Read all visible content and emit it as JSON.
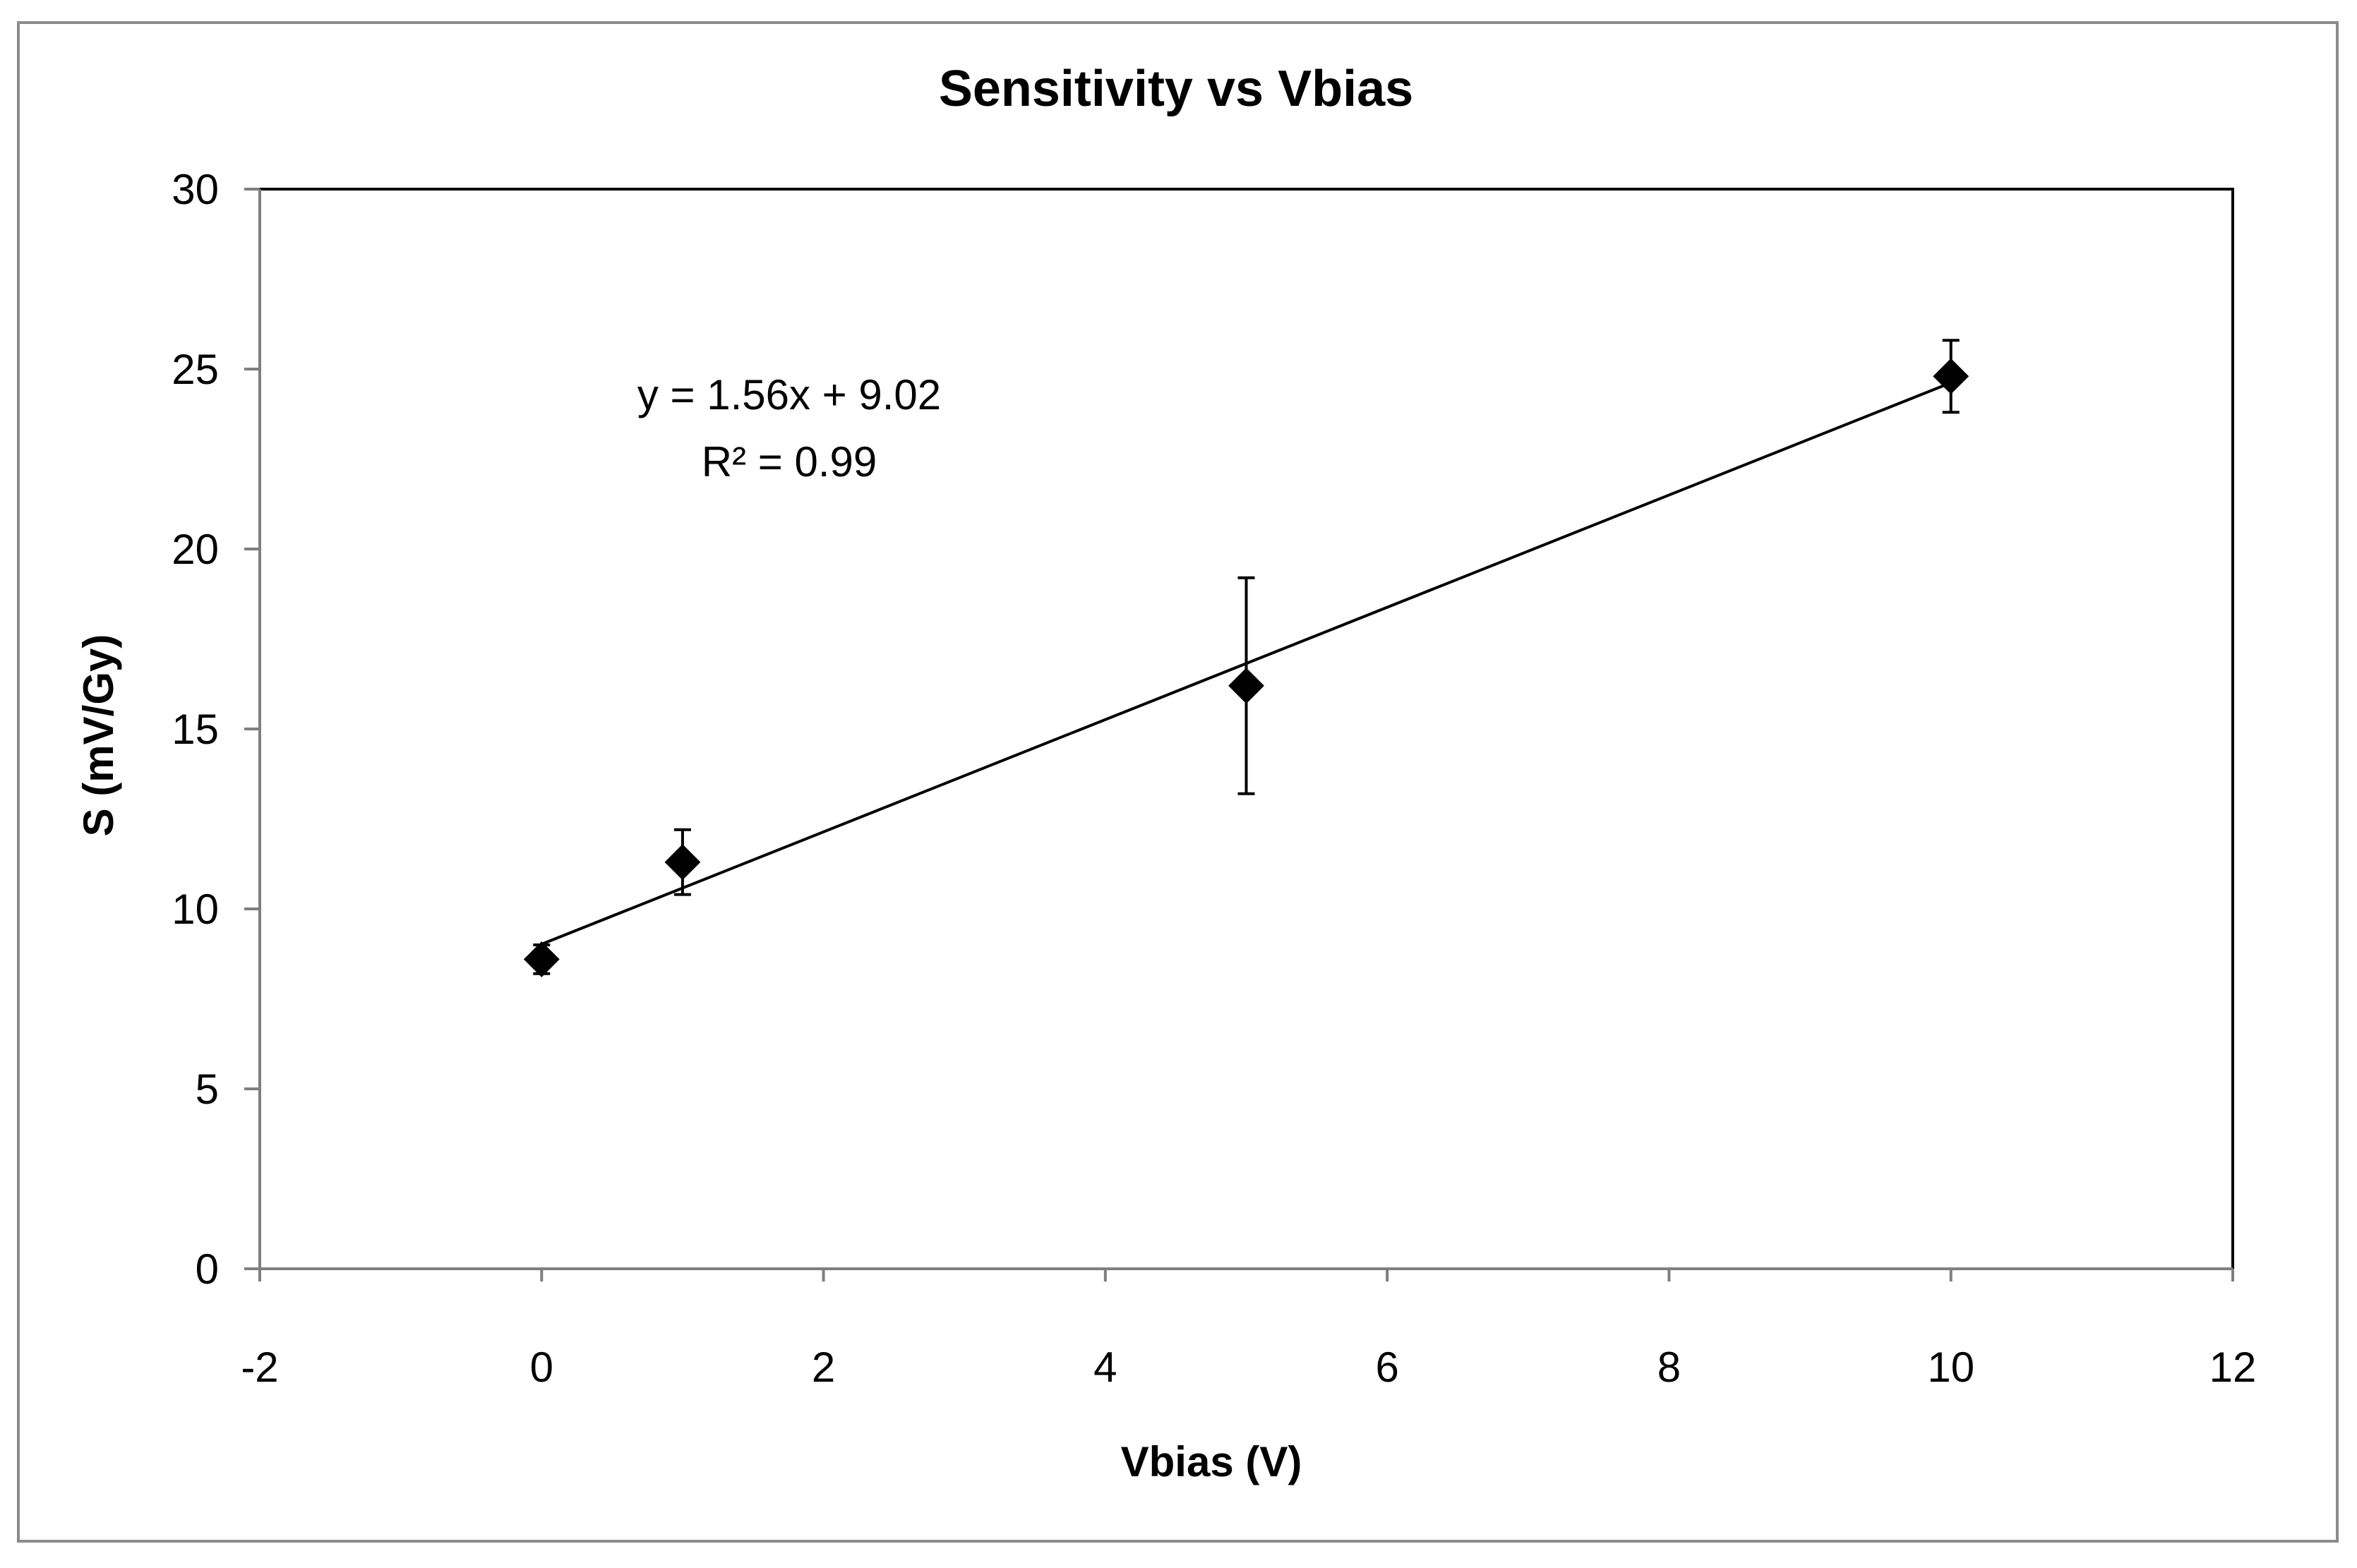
{
  "chart_data": {
    "type": "scatter",
    "title": "Sensitivity vs Vbias",
    "xlabel": "Vbias (V)",
    "ylabel": "S (mV/Gy)",
    "xlim": [
      -2,
      12
    ],
    "ylim": [
      0,
      30
    ],
    "xticks": [
      -2,
      0,
      2,
      4,
      6,
      8,
      10,
      12
    ],
    "yticks": [
      0,
      5,
      10,
      15,
      20,
      25,
      30
    ],
    "grid": false,
    "series": [
      {
        "name": "Sensitivity",
        "marker": "diamond",
        "color": "#000000",
        "x": [
          0,
          1,
          5,
          10
        ],
        "y": [
          8.6,
          11.3,
          16.2,
          24.8
        ],
        "yerr": [
          0.4,
          0.9,
          3.0,
          1.0
        ]
      }
    ],
    "trendline": {
      "type": "linear",
      "slope": 1.56,
      "intercept": 9.02,
      "x_range": [
        0,
        10
      ],
      "equation": "y = 1.56x + 9.02",
      "r2_label": "R² = 0.99"
    }
  }
}
